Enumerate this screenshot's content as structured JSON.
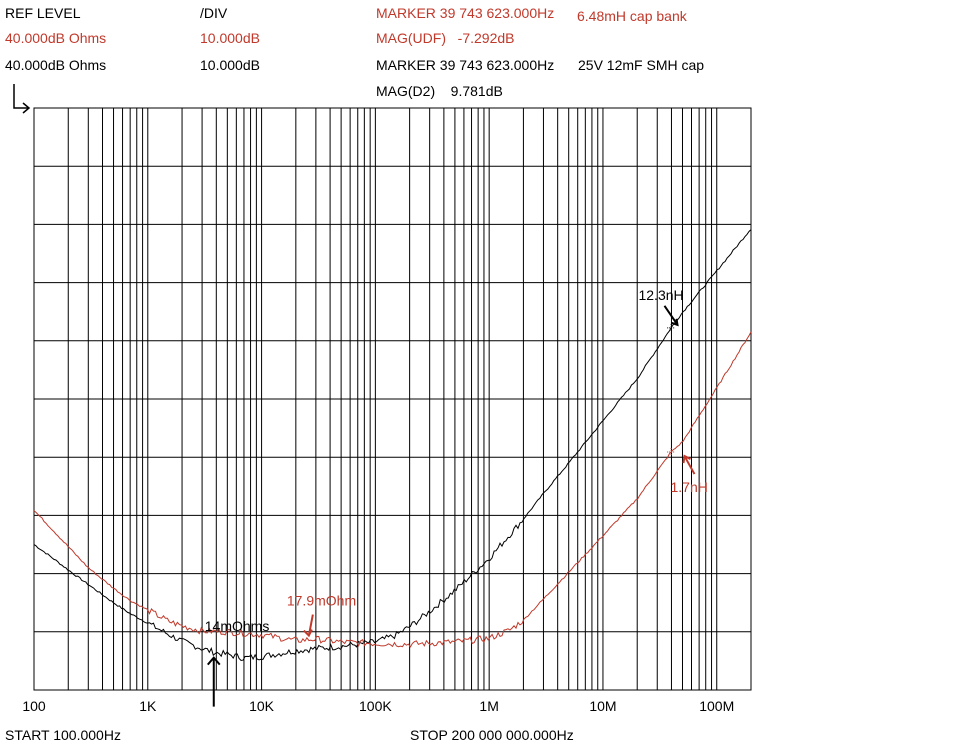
{
  "colors": {
    "black_trace": "#000000",
    "red_trace": "#c0392b",
    "grid": "#000000",
    "red_text": "#c0392b"
  },
  "header": {
    "ref_level_label": "REF LEVEL",
    "div_label": "/DIV",
    "red_ref_value": "40.000dB Ohms",
    "red_div_value": "10.000dB",
    "black_ref_value": "40.000dB  Ohms",
    "black_div_value": "10.000dB",
    "red_marker": "MARKER 39 743 623.000Hz",
    "red_mag": "MAG(UDF)   -7.292dB",
    "red_label": "6.48mH cap bank",
    "black_marker": "MARKER 39 743 623.000Hz",
    "black_mag": "MAG(D2)    9.781dB",
    "black_label": "25V 12mF SMH cap"
  },
  "footer": {
    "start": "START 100.000Hz",
    "stop": "STOP 200 000 000.000Hz"
  },
  "chart_data": {
    "type": "line",
    "x_scale": "log",
    "xlim": [
      100,
      200000000
    ],
    "x_tick_labels": [
      "100",
      "1K",
      "10K",
      "100K",
      "1M",
      "10M",
      "100M"
    ],
    "x_tick_values": [
      100,
      1000,
      10000,
      100000,
      1000000,
      10000000,
      100000000
    ],
    "y_unit": "dB Ohms",
    "ylim": [
      -40,
      40
    ],
    "y_divisions": 10,
    "grid": true,
    "series": [
      {
        "name": "25V 12mF SMH cap",
        "color": "#000000",
        "x": [
          100,
          150,
          200,
          300,
          500,
          700,
          1000,
          1500,
          2000,
          3000,
          4000,
          5000,
          7000,
          10000,
          20000,
          30000,
          50000,
          100000,
          150000,
          200000,
          300000,
          500000,
          1000000,
          2000000,
          3000000,
          5000000,
          10000000,
          20000000,
          39743623,
          50000000,
          100000000,
          200000000
        ],
        "y": [
          -20.0,
          -22.0,
          -23.5,
          -25.5,
          -28.0,
          -29.5,
          -30.8,
          -32.3,
          -33.3,
          -34.3,
          -34.9,
          -35.1,
          -35.6,
          -35.4,
          -34.6,
          -34.3,
          -34.0,
          -33.4,
          -32.5,
          -31.3,
          -29.2,
          -26.3,
          -21.9,
          -16.5,
          -13.0,
          -8.8,
          -3.0,
          2.8,
          9.781,
          11.9,
          17.6,
          23.4
        ]
      },
      {
        "name": "6.48mH cap bank",
        "color": "#c0392b",
        "x": [
          100,
          150,
          200,
          300,
          500,
          700,
          1000,
          1500,
          2000,
          3000,
          5000,
          10000,
          20000,
          30000,
          50000,
          100000,
          200000,
          500000,
          1000000,
          1500000,
          2000000,
          3000000,
          5000000,
          10000000,
          20000000,
          39743623,
          50000000,
          100000000,
          200000000
        ],
        "y": [
          -15.3,
          -18.2,
          -20.3,
          -23.2,
          -26.0,
          -27.7,
          -29.0,
          -30.5,
          -31.2,
          -31.9,
          -32.0,
          -32.4,
          -33.2,
          -33.0,
          -33.4,
          -33.6,
          -33.7,
          -33.4,
          -32.9,
          -31.8,
          -30.4,
          -27.5,
          -23.8,
          -18.8,
          -13.7,
          -7.292,
          -5.9,
          1.5,
          9.2
        ]
      }
    ],
    "annotations": [
      {
        "text": "12.3nH",
        "color": "#000000",
        "x": 50000000,
        "y": 9.781
      },
      {
        "text": "1.7nH",
        "color": "#c0392b",
        "x": 50000000,
        "y": -7.292
      },
      {
        "text": "17.9mOhm",
        "color": "#c0392b",
        "x": 25000,
        "y": -33.2
      },
      {
        "text": "14mOhms",
        "color": "#000000",
        "x": 3800,
        "y": -35.0
      }
    ]
  }
}
